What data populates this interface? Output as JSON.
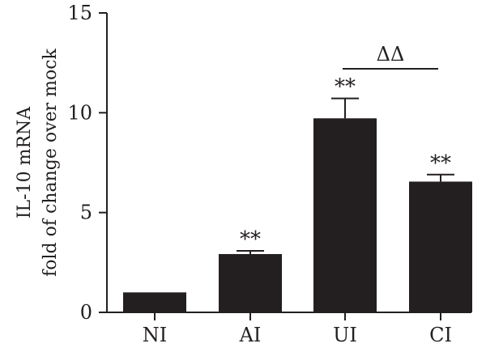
{
  "chart_data": {
    "type": "bar",
    "categories": [
      "NI",
      "AI",
      "UI",
      "CI"
    ],
    "values": [
      1.0,
      2.92,
      9.72,
      6.55
    ],
    "errors": [
      0.0,
      0.16,
      1.0,
      0.35
    ],
    "significance": [
      "",
      "**",
      "**",
      "**"
    ],
    "bracket": {
      "from": "UI",
      "to": "CI",
      "label": "ΔΔ"
    },
    "title": "",
    "xlabel": "",
    "ylabel_lines": [
      "IL-10 mRNA",
      "fold of change over mock"
    ],
    "ylim": [
      0,
      15
    ],
    "yticks": [
      0,
      5,
      10,
      15
    ],
    "bar_color": "#231f20",
    "grid": false,
    "legend": "none"
  }
}
